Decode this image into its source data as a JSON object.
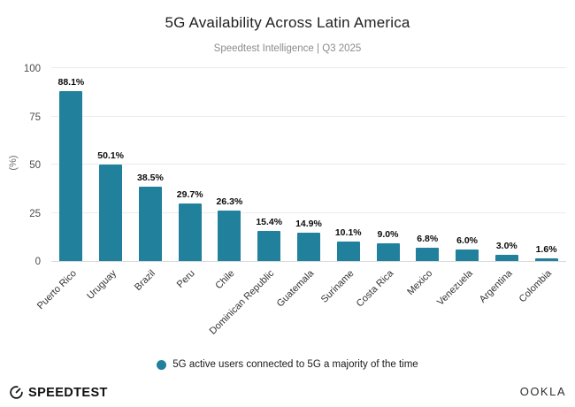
{
  "header": {
    "title": "5G Availability Across Latin America",
    "subtitle": "Speedtest Intelligence | Q3 2025"
  },
  "chart_data": {
    "type": "bar",
    "title": "5G Availability Across Latin America",
    "subtitle": "Speedtest Intelligence | Q3 2025",
    "categories": [
      "Puerto Rico",
      "Uruguay",
      "Brazil",
      "Peru",
      "Chile",
      "Dominican Republic",
      "Guatemala",
      "Suriname",
      "Costa Rica",
      "Mexico",
      "Venezuela",
      "Argentina",
      "Colombia"
    ],
    "values": [
      88.1,
      50.1,
      38.5,
      29.7,
      26.3,
      15.4,
      14.9,
      10.1,
      9.0,
      6.8,
      6.0,
      3.0,
      1.6
    ],
    "value_suffix": "%",
    "xlabel": "",
    "ylabel": "(%)",
    "ylim": [
      0,
      100
    ],
    "yticks": [
      0,
      25,
      50,
      75,
      100
    ],
    "grid": true,
    "bar_color": "#21809b",
    "legend": {
      "label": "5G active users connected to 5G a majority of the time",
      "position": "bottom"
    }
  },
  "footer": {
    "speedtest_label": "SPEEDTEST",
    "ookla_label": "OOKLA",
    "speedtest_icon": "gauge-icon"
  }
}
